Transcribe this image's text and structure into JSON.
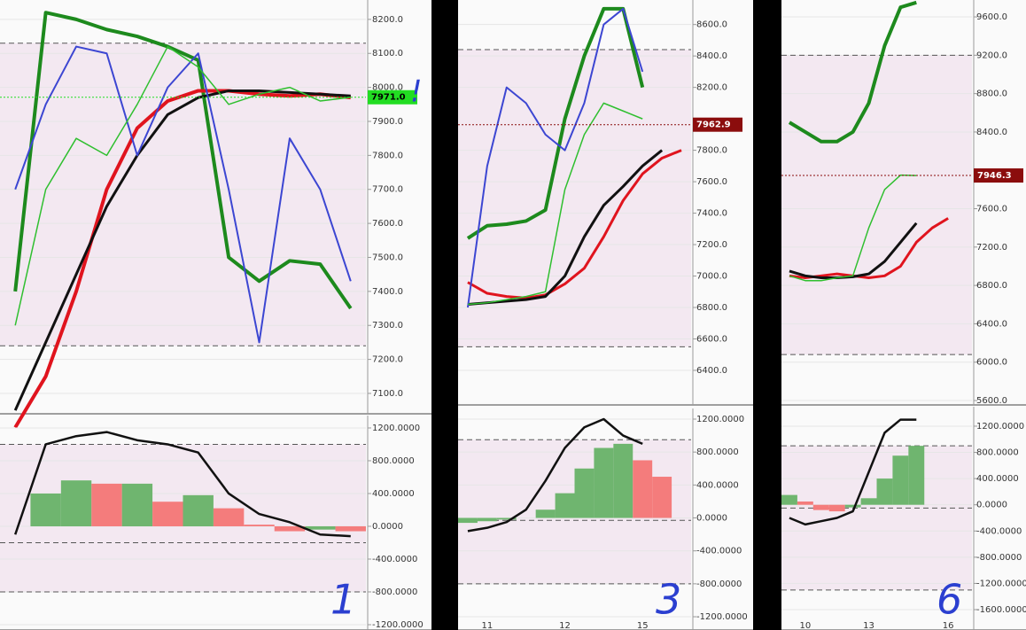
{
  "chart_data": [
    {
      "type": "line",
      "categories": [
        null,
        null,
        null,
        null,
        null,
        null,
        null,
        null,
        null,
        null,
        null,
        null
      ],
      "ylim": [
        7040,
        8257
      ],
      "yticks": [
        {
          "value": 7100,
          "label": "7100.0"
        },
        {
          "value": 7200,
          "label": "7200.0"
        },
        {
          "value": 7300,
          "label": "7300.0"
        },
        {
          "value": 7400,
          "label": "7400.0"
        },
        {
          "value": 7500,
          "label": "7500.0"
        },
        {
          "value": 7600,
          "label": "7600.0"
        },
        {
          "value": 7700,
          "label": "7700.0"
        },
        {
          "value": 7800,
          "label": "7800.0"
        },
        {
          "value": 7900,
          "label": "7900.0"
        },
        {
          "value": 8000,
          "label": "8000.0"
        },
        {
          "value": 8100,
          "label": "8100.0"
        },
        {
          "value": 8200,
          "label": "8200.0"
        }
      ],
      "hlines": [
        8130,
        7240
      ],
      "series": [
        {
          "color": "#1d8a1d",
          "width": 4,
          "values": [
            7400,
            8220,
            8200,
            8170,
            8150,
            8120,
            8080,
            7500,
            7430,
            7490,
            7480,
            7350
          ]
        },
        {
          "color": "#e0141e",
          "width": 4,
          "values": [
            7000,
            7150,
            7400,
            7700,
            7880,
            7960,
            7990,
            7990,
            7980,
            7975,
            7980,
            7970
          ]
        },
        {
          "color": "#111111",
          "width": 3,
          "values": [
            7050,
            7250,
            7450,
            7650,
            7800,
            7920,
            7970,
            7990,
            7990,
            7985,
            7980,
            7975
          ]
        },
        {
          "color": "#3c46d2",
          "width": 2,
          "values": [
            7700,
            7950,
            8120,
            8100,
            7800,
            8000,
            8100,
            7700,
            7250,
            7850,
            7700,
            7430
          ]
        },
        {
          "color": "#2fbf2f",
          "width": 1.5,
          "values": [
            7300,
            7700,
            7850,
            7800,
            7950,
            8120,
            8060,
            7950,
            7980,
            8000,
            7960,
            7971
          ]
        }
      ],
      "last_price": {
        "value": 7971,
        "label": "7971.0",
        "color": "#22dd22"
      },
      "note": "!"
    },
    {
      "type": "oscillator",
      "categories": [
        null,
        null,
        null,
        null,
        null,
        null,
        null,
        null,
        null,
        null,
        null,
        null
      ],
      "ylim": [
        -1265,
        1351
      ],
      "yticks": [
        {
          "value": -1200,
          "label": "-1200.0000"
        },
        {
          "value": -800,
          "label": "-800.0000"
        },
        {
          "value": -400,
          "label": "-400.0000"
        },
        {
          "value": 0,
          "label": "0.0000"
        },
        {
          "value": 400,
          "label": "400.0000"
        },
        {
          "value": 800,
          "label": "800.0000"
        },
        {
          "value": 1200,
          "label": "1200.0000"
        }
      ],
      "hlines": [
        1000,
        -200,
        -800
      ],
      "histogram": [
        0,
        400,
        560,
        520,
        520,
        300,
        380,
        220,
        20,
        -60,
        -40,
        -60
      ],
      "series": [
        {
          "color": "#111111",
          "width": 2.5,
          "values": [
            -100,
            1000,
            1100,
            1150,
            1050,
            1000,
            900,
            400,
            150,
            50,
            -100,
            -120
          ]
        }
      ],
      "annotation": "1"
    },
    {
      "type": "line",
      "categories": [
        null,
        "11",
        null,
        null,
        null,
        "12",
        null,
        null,
        null,
        "15",
        null,
        null
      ],
      "ylim": [
        6180,
        8756
      ],
      "yticks": [
        {
          "value": 6400,
          "label": "6400.0"
        },
        {
          "value": 6600,
          "label": "6600.0"
        },
        {
          "value": 6800,
          "label": "6800.0"
        },
        {
          "value": 7000,
          "label": "7000.0"
        },
        {
          "value": 7200,
          "label": "7200.0"
        },
        {
          "value": 7400,
          "label": "7400.0"
        },
        {
          "value": 7600,
          "label": "7600.0"
        },
        {
          "value": 7800,
          "label": "7800.0"
        },
        {
          "value": 8200,
          "label": "8200.0"
        },
        {
          "value": 8400,
          "label": "8400.0"
        },
        {
          "value": 8600,
          "label": "8600.0"
        }
      ],
      "hlines": [
        8440,
        6550
      ],
      "series": [
        {
          "color": "#1d8a1d",
          "width": 4,
          "values": [
            7240,
            7320,
            7330,
            7350,
            7420,
            8000,
            8400,
            8700,
            8700,
            8200,
            null,
            null
          ]
        },
        {
          "color": "#e0141e",
          "width": 3,
          "values": [
            6960,
            6890,
            6870,
            6860,
            6880,
            6950,
            7050,
            7250,
            7480,
            7650,
            7750,
            7800
          ]
        },
        {
          "color": "#111111",
          "width": 3,
          "values": [
            6820,
            6830,
            6840,
            6850,
            6870,
            7000,
            7250,
            7450,
            7570,
            7700,
            7800,
            null
          ]
        },
        {
          "color": "#3c46d2",
          "width": 2,
          "values": [
            6800,
            7700,
            8200,
            8100,
            7900,
            7800,
            8100,
            8600,
            8700,
            8300,
            null,
            null
          ]
        },
        {
          "color": "#2fbf2f",
          "width": 1.5,
          "values": [
            6820,
            6830,
            6850,
            6870,
            6900,
            7550,
            7900,
            8100,
            8050,
            8000,
            null,
            null
          ]
        }
      ],
      "last_price": {
        "value": 7962.9,
        "label": "7962.9",
        "color": "#8b0d0d"
      }
    },
    {
      "type": "oscillator",
      "categories": [
        null,
        null,
        null,
        null,
        null,
        null,
        null,
        null,
        null,
        null,
        null,
        null
      ],
      "ylim": [
        -1361,
        1329
      ],
      "yticks": [
        {
          "value": -1200,
          "label": "-1200.0000"
        },
        {
          "value": -800,
          "label": "-800.0000"
        },
        {
          "value": -400,
          "label": "-400.0000"
        },
        {
          "value": 0,
          "label": "0.0000"
        },
        {
          "value": 400,
          "label": "400.0000"
        },
        {
          "value": 800,
          "label": "800.0000"
        },
        {
          "value": 1200,
          "label": "1200.0000"
        }
      ],
      "hlines": [
        950,
        -30,
        -800
      ],
      "histogram": [
        -60,
        -40,
        -20,
        0,
        100,
        300,
        600,
        850,
        900,
        700,
        500,
        null
      ],
      "series": [
        {
          "color": "#111111",
          "width": 2.5,
          "values": [
            -160,
            -120,
            -50,
            100,
            450,
            850,
            1100,
            1200,
            1000,
            900,
            null,
            null
          ]
        }
      ],
      "annotation": "3"
    },
    {
      "type": "line",
      "categories": [
        null,
        "10",
        null,
        null,
        null,
        "13",
        null,
        null,
        null,
        null,
        "16",
        null
      ],
      "ylim": [
        5554,
        9776
      ],
      "yticks": [
        {
          "value": 5600,
          "label": "5600.0"
        },
        {
          "value": 6000,
          "label": "6000.0"
        },
        {
          "value": 6400,
          "label": "6400.0"
        },
        {
          "value": 6800,
          "label": "6800.0"
        },
        {
          "value": 7200,
          "label": "7200.0"
        },
        {
          "value": 7600,
          "label": "7600.0"
        },
        {
          "value": 8400,
          "label": "8400.0"
        },
        {
          "value": 8800,
          "label": "8800.0"
        },
        {
          "value": 9200,
          "label": "9200.0"
        },
        {
          "value": 9600,
          "label": "9600.0"
        }
      ],
      "hlines": [
        9200,
        6080
      ],
      "series": [
        {
          "color": "#1d8a1d",
          "width": 4,
          "values": [
            8500,
            8400,
            8300,
            8300,
            8400,
            8700,
            9300,
            9700,
            9750,
            null,
            null,
            null
          ]
        },
        {
          "color": "#e0141e",
          "width": 3,
          "values": [
            6900,
            6880,
            6900,
            6920,
            6900,
            6880,
            6900,
            7000,
            7250,
            7400,
            7500,
            null
          ]
        },
        {
          "color": "#111111",
          "width": 3,
          "values": [
            6950,
            6900,
            6880,
            6880,
            6890,
            6920,
            7050,
            7250,
            7450,
            null,
            null,
            null
          ]
        },
        {
          "color": "#2fbf2f",
          "width": 1.5,
          "values": [
            6900,
            6850,
            6850,
            6880,
            6900,
            7400,
            7800,
            7950,
            7946,
            null,
            null,
            null
          ]
        }
      ],
      "last_price": {
        "value": 7946.3,
        "label": "7946.3",
        "color": "#8b0d0d"
      }
    },
    {
      "type": "oscillator",
      "categories": [
        null,
        null,
        null,
        null,
        null,
        null,
        null,
        null,
        null,
        null,
        null,
        null
      ],
      "ylim": [
        -1911,
        1497
      ],
      "yticks": [
        {
          "value": -1600,
          "label": "-1600.0000"
        },
        {
          "value": -1200,
          "label": "-1200.0000"
        },
        {
          "value": -800,
          "label": "-800.0000"
        },
        {
          "value": -400,
          "label": "-400.0000"
        },
        {
          "value": 0,
          "label": "0.0000"
        },
        {
          "value": 400,
          "label": "400.0000"
        },
        {
          "value": 800,
          "label": "800.0000"
        },
        {
          "value": 1200,
          "label": "1200.0000"
        }
      ],
      "hlines": [
        900,
        -50,
        -1300
      ],
      "histogram": [
        150,
        50,
        -80,
        -100,
        -40,
        100,
        400,
        750,
        900,
        null,
        null,
        null
      ],
      "series": [
        {
          "color": "#111111",
          "width": 2.5,
          "values": [
            -200,
            -300,
            -250,
            -200,
            -100,
            500,
            1100,
            1300,
            1300,
            null,
            null,
            null
          ]
        }
      ],
      "annotation": "6"
    }
  ]
}
